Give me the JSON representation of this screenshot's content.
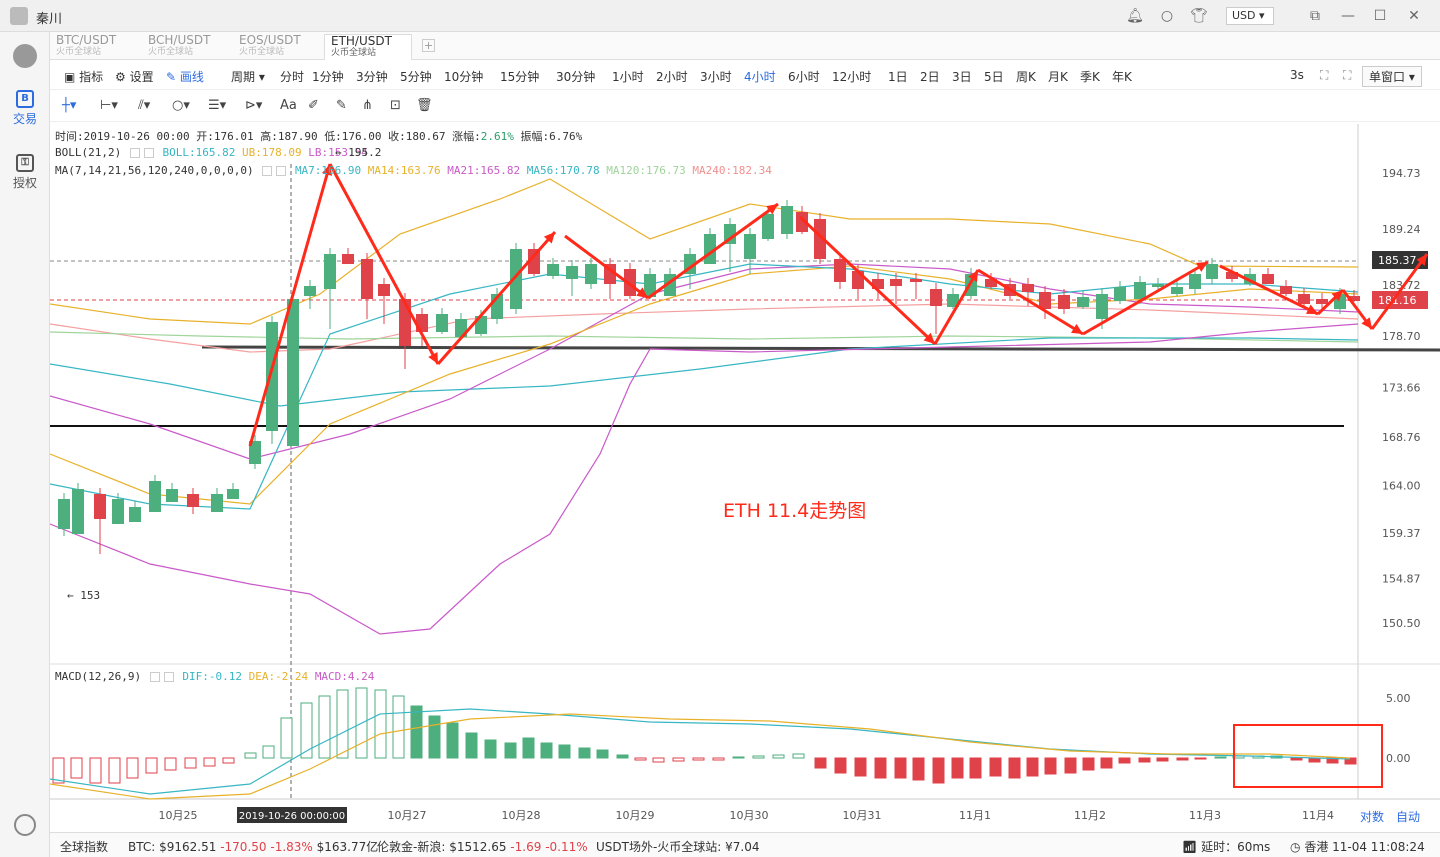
{
  "window": {
    "user": "秦川",
    "currency": "USD"
  },
  "sidebar": {
    "items": [
      {
        "label": "交易",
        "icon": "B"
      },
      {
        "label": "授权",
        "icon": "key-icon"
      }
    ]
  },
  "tabs": [
    {
      "label": "BTC/USDT",
      "sub": "火币全球站"
    },
    {
      "label": "BCH/USDT",
      "sub": "火币全球站"
    },
    {
      "label": "EOS/USDT",
      "sub": "火币全球站"
    },
    {
      "label": "ETH/USDT",
      "sub": "火币全球站",
      "active": true
    }
  ],
  "toolbar": {
    "indicator": "指标",
    "settings": "设置",
    "draw": "画线",
    "period": "周期",
    "periods": [
      "分时",
      "1分钟",
      "3分钟",
      "5分钟",
      "10分钟",
      "15分钟",
      "30分钟",
      "1小时",
      "2小时",
      "3小时",
      "4小时",
      "6小时",
      "12小时",
      "1日",
      "2日",
      "3日",
      "5日",
      "周K",
      "月K",
      "季K",
      "年K"
    ],
    "active_period": "4小时",
    "refresh": "3s",
    "window_mode": "单窗口"
  },
  "legend": {
    "time": "时间:2019-10-26 00:00",
    "open": "开:176.01",
    "high": "高:187.90",
    "low": "低:176.00",
    "close": "收:180.67",
    "change_label": "涨幅:",
    "change": "2.61%",
    "amp_label": "振幅:",
    "amp": "6.76%",
    "boll": "BOLL(21,2)",
    "boll_v": "BOLL:165.82",
    "ub": "UB:178.09",
    "lb": "LB:153.54",
    "ma": "MA(7,14,21,56,120,240,0,0,0,0)",
    "ma7": "MA7:166.90",
    "ma14": "MA14:163.76",
    "ma21": "MA21:165.82",
    "ma56": "MA56:170.78",
    "ma120": "MA120:176.73",
    "ma240": "MA240:182.34",
    "high_mark": "← 195.2",
    "low_mark": "← 153",
    "macd": "MACD(12,26,9)",
    "dif": "DIF:-0.12",
    "dea": "DEA:-2.24",
    "macd_v": "MACD:4.24"
  },
  "annotation": "ETH  11.4走势图",
  "price_axis": [
    "194.73",
    "189.24",
    "183.72",
    "178.70",
    "173.66",
    "168.76",
    "164.00",
    "159.37",
    "154.87",
    "150.50"
  ],
  "current_price": "185.37",
  "cross_price": "181.16",
  "macd_axis": [
    "5.00",
    "0.00"
  ],
  "x_axis": [
    "10月25",
    "10月27",
    "10月28",
    "10月29",
    "10月30",
    "10月31",
    "11月1",
    "11月2",
    "11月3",
    "11月4"
  ],
  "cursor_time": "2019-10-26 00:00:00",
  "axis_btns": {
    "log": "对数",
    "auto": "自动"
  },
  "colors": {
    "up": "#4caf7d",
    "down": "#e0424a",
    "ma7": "#e8b12a",
    "ma14": "#e8b12a",
    "ma21": "#c95ac9",
    "ma56": "#37b6c3",
    "ma120": "#9fd49a",
    "ma240": "#f09090",
    "arrow": "#ff2a1a"
  },
  "status": {
    "index": "全球指数",
    "btc_label": "BTC:",
    "btc_price": "$9162.51",
    "btc_chg": "-170.50",
    "btc_pct": "-1.83%",
    "btc_vol": "$163.77亿",
    "gold_label": "伦敦金-新浪:",
    "gold_price": "$1512.65",
    "gold_chg": "-1.69",
    "gold_pct": "-0.11%",
    "usdt": "USDT场外-火币全球站: ¥7.04",
    "latency": "延时：60ms",
    "region": "香港 11-04 11:08:24"
  }
}
